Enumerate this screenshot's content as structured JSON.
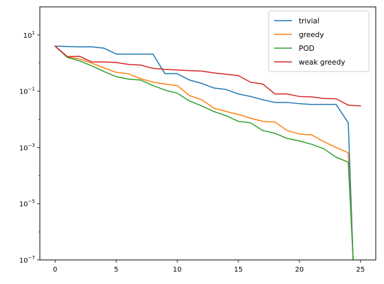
{
  "chart_data": {
    "type": "line",
    "title": "",
    "xlabel": "",
    "ylabel": "",
    "yscale": "log",
    "xlim": [
      -1.25,
      26.25
    ],
    "ylim": [
      1e-07,
      100
    ],
    "grid": false,
    "legend_position": "top-right",
    "x_ticks": [
      0,
      5,
      10,
      15,
      20,
      25
    ],
    "x_tick_labels": [
      "0",
      "5",
      "10",
      "15",
      "20",
      "25"
    ],
    "y_ticks": [
      1e-07,
      1e-05,
      0.001,
      0.1,
      10
    ],
    "y_tick_bases": [
      "10",
      "10",
      "10",
      "10",
      "10"
    ],
    "y_tick_exponents": [
      "−7",
      "−5",
      "−3",
      "−1",
      "1"
    ],
    "series": [
      {
        "name": "trivial",
        "color": "#1f77b4",
        "x": [
          0,
          1,
          2,
          3,
          4,
          5,
          6,
          7,
          8,
          9,
          10,
          11,
          12,
          13,
          14,
          15,
          16,
          17,
          18,
          19,
          20,
          21,
          22,
          23,
          24,
          24.4
        ],
        "y": [
          4.0,
          3.9,
          3.8,
          3.8,
          3.4,
          2.1,
          2.1,
          2.1,
          2.1,
          0.42,
          0.42,
          0.25,
          0.19,
          0.13,
          0.115,
          0.08,
          0.065,
          0.05,
          0.04,
          0.04,
          0.036,
          0.034,
          0.034,
          0.034,
          0.0075,
          1e-07
        ]
      },
      {
        "name": "greedy",
        "color": "#ff7f0e",
        "x": [
          0,
          1,
          2,
          3,
          4,
          5,
          6,
          7,
          8,
          9,
          10,
          11,
          12,
          13,
          14,
          15,
          16,
          17,
          18,
          19,
          20,
          21,
          22,
          23,
          24,
          24.4
        ],
        "y": [
          4.0,
          1.65,
          1.4,
          1.0,
          0.68,
          0.47,
          0.42,
          0.28,
          0.21,
          0.18,
          0.16,
          0.07,
          0.05,
          0.025,
          0.019,
          0.015,
          0.011,
          0.0085,
          0.008,
          0.004,
          0.003,
          0.0028,
          0.0016,
          0.001,
          0.00065,
          1e-07
        ]
      },
      {
        "name": "POD",
        "color": "#2ca02c",
        "x": [
          0,
          1,
          2,
          3,
          4,
          5,
          6,
          7,
          8,
          9,
          10,
          11,
          12,
          13,
          14,
          15,
          16,
          17,
          18,
          19,
          20,
          21,
          22,
          23,
          24,
          24.4
        ],
        "y": [
          4.0,
          1.6,
          1.2,
          0.8,
          0.5,
          0.33,
          0.27,
          0.25,
          0.16,
          0.11,
          0.085,
          0.045,
          0.03,
          0.019,
          0.0135,
          0.0085,
          0.0075,
          0.004,
          0.0032,
          0.0021,
          0.0017,
          0.0013,
          0.0009,
          0.00045,
          0.0003,
          1e-07
        ]
      },
      {
        "name": "weak greedy",
        "color": "#d62728",
        "x": [
          0,
          1,
          2,
          3,
          4,
          5,
          6,
          7,
          8,
          9,
          10,
          11,
          12,
          13,
          14,
          15,
          16,
          17,
          18,
          19,
          20,
          21,
          22,
          23,
          24,
          25
        ],
        "y": [
          4.0,
          1.7,
          1.75,
          1.1,
          1.1,
          1.05,
          0.9,
          0.85,
          0.65,
          0.6,
          0.57,
          0.54,
          0.52,
          0.45,
          0.4,
          0.36,
          0.21,
          0.18,
          0.08,
          0.08,
          0.065,
          0.063,
          0.055,
          0.054,
          0.032,
          0.03
        ]
      }
    ]
  }
}
